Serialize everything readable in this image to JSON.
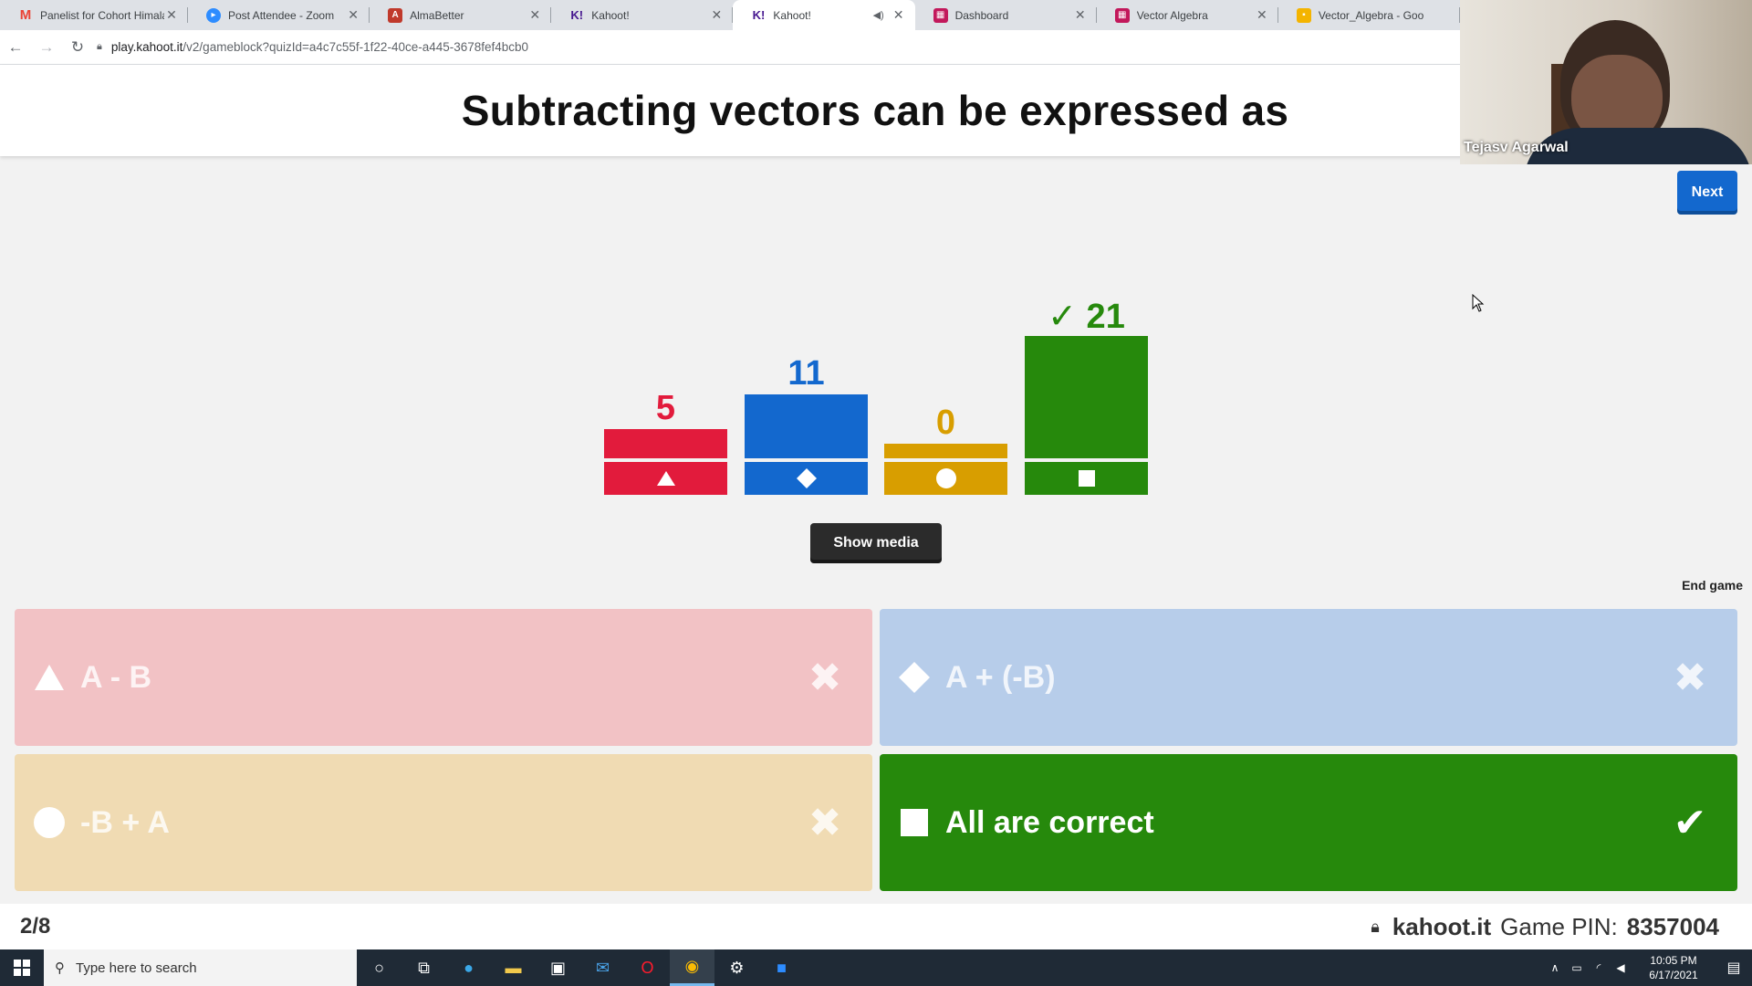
{
  "browser": {
    "tabs": [
      {
        "title": "Panelist for Cohort Himala",
        "icon": "gmail-icon",
        "color": "#ea4335"
      },
      {
        "title": "Post Attendee - Zoom",
        "icon": "zoom-icon",
        "color": "#2d8cff"
      },
      {
        "title": "AlmaBetter",
        "icon": "almabetter-icon",
        "color": "#c0392b"
      },
      {
        "title": "Kahoot!",
        "icon": "kahoot-icon",
        "color": "#46178f"
      },
      {
        "title": "Kahoot!",
        "icon": "kahoot-icon",
        "color": "#46178f",
        "active": true
      },
      {
        "title": "Dashboard",
        "icon": "dashboard-icon",
        "color": "#c2185b"
      },
      {
        "title": "Vector Algebra",
        "icon": "vector-icon",
        "color": "#c2185b"
      },
      {
        "title": "Vector_Algebra - Goo",
        "icon": "slides-icon",
        "color": "#f4b400"
      }
    ],
    "url_host": "play.kahoot.it",
    "url_path": "/v2/gameblock?quizId=a4c7c55f-1f22-40ce-a445-3678fef4bcb0"
  },
  "question": {
    "title": "Subtracting vectors can be expressed as"
  },
  "controls": {
    "next_label": "Next",
    "show_media_label": "Show media",
    "end_game_label": "End game"
  },
  "chart_data": {
    "type": "bar",
    "categories": [
      "triangle",
      "diamond",
      "circle",
      "square"
    ],
    "values": [
      5,
      11,
      0,
      21
    ],
    "labels": [
      "5",
      "11",
      "0",
      "✓ 21"
    ],
    "colors": [
      "#e21b3c",
      "#1368ce",
      "#d89e00",
      "#26890c"
    ],
    "correct_index": 3
  },
  "answers": [
    {
      "text": "A - B",
      "shape": "triangle",
      "correct": false,
      "color": "#f2c2c5"
    },
    {
      "text": "A + (-B)",
      "shape": "diamond",
      "correct": false,
      "color": "#b7cdea"
    },
    {
      "text": "-B + A",
      "shape": "circle",
      "correct": false,
      "color": "#f0dbb3"
    },
    {
      "text": "All are correct",
      "shape": "square",
      "correct": true,
      "color": "#26890c"
    }
  ],
  "footer": {
    "counter": "2/8",
    "brand": "kahoot.it",
    "pin_label": "Game PIN:",
    "pin": "8357004"
  },
  "video": {
    "participant": "Tejasv Agarwal"
  },
  "taskbar": {
    "search_placeholder": "Type here to search",
    "time": "10:05 PM",
    "date": "6/17/2021"
  }
}
